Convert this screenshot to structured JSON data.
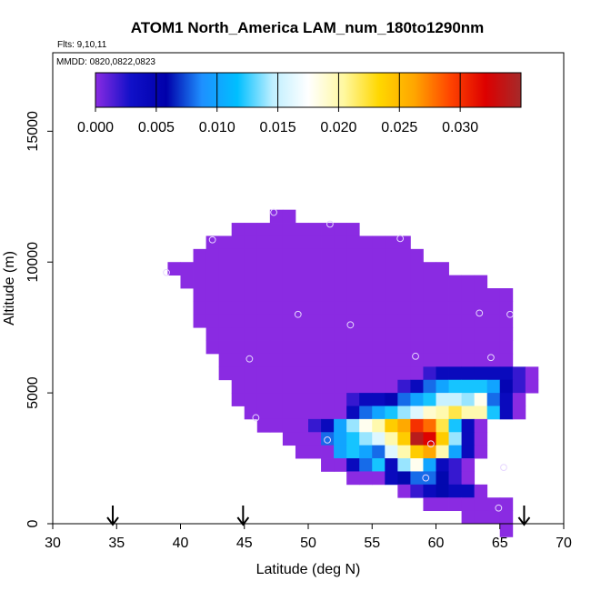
{
  "chart_data": {
    "type": "heatmap",
    "title": "ATOM1 North_America LAM_num_180to1290nm",
    "flights_label": "Flts: 9,10,11",
    "dates_label": "MMDD: 0820,0822,0823",
    "xlabel": "Latitude (deg N)",
    "ylabel": "Altitude (m)",
    "xlim": [
      30,
      70
    ],
    "ylim": [
      0,
      18000
    ],
    "x_ticks": [
      30,
      35,
      40,
      45,
      50,
      55,
      60,
      65,
      70
    ],
    "x_tick_labels": [
      "30",
      "35",
      "40",
      "45",
      "50",
      "55",
      "60",
      "65",
      "70"
    ],
    "y_ticks": [
      0,
      5000,
      10000,
      15000
    ],
    "y_tick_labels": [
      "0",
      "5000",
      "10000",
      "15000"
    ],
    "colorbar": {
      "range": [
        0,
        0.035
      ],
      "ticks": [
        0.0,
        0.005,
        0.01,
        0.015,
        0.02,
        0.025,
        0.03
      ],
      "tick_labels": [
        "0.000",
        "0.005",
        "0.010",
        "0.015",
        "0.020",
        "0.025",
        "0.030"
      ],
      "colors": [
        "#8a2be2",
        "#1010c8",
        "#0000aa",
        "#1e90ff",
        "#00bfff",
        "#bfefff",
        "#ffffff",
        "#fff8a0",
        "#ffd700",
        "#ffa500",
        "#ff4500",
        "#dd0000",
        "#a52a2a"
      ]
    },
    "grid": {
      "lat_start": 39,
      "lat_step": 1,
      "alt_top": 12000,
      "alt_step": 500,
      "rows": [
        {
          "start": 47,
          "values": [
            0,
            0
          ]
        },
        {
          "start": 44,
          "values": [
            0,
            0,
            0,
            0,
            0,
            0,
            0,
            0,
            0,
            0
          ]
        },
        {
          "start": 42,
          "values": [
            0,
            0,
            0,
            0,
            0,
            0,
            0,
            0,
            0,
            0,
            0,
            0,
            0,
            0,
            0,
            0
          ]
        },
        {
          "start": 41,
          "values": [
            0,
            0,
            0,
            0,
            0,
            0,
            0,
            0,
            0,
            0,
            0,
            0,
            0,
            0,
            0,
            0,
            0,
            0
          ]
        },
        {
          "start": 39,
          "values": [
            0,
            0,
            0,
            0,
            0,
            0,
            0,
            0,
            0,
            0,
            0,
            0,
            0,
            0,
            0,
            0,
            0,
            0,
            0,
            0,
            0,
            0
          ]
        },
        {
          "start": 40,
          "values": [
            0,
            0,
            0,
            0,
            0,
            0,
            0,
            0,
            0,
            0,
            0,
            0,
            0,
            0,
            0,
            0,
            0,
            0,
            0,
            0,
            0,
            0,
            0,
            0
          ]
        },
        {
          "start": 41,
          "values": [
            0,
            0,
            0,
            0,
            0,
            0,
            0,
            0,
            0,
            0,
            0,
            0,
            0,
            0,
            0,
            0,
            0,
            0,
            0,
            0,
            0,
            0,
            0,
            0,
            0
          ]
        },
        {
          "start": 41,
          "values": [
            0,
            0,
            0,
            0,
            0,
            0,
            0,
            0,
            0,
            0,
            0,
            0,
            0,
            0,
            0,
            0,
            0,
            0,
            0,
            0,
            0,
            0,
            0,
            0,
            0
          ]
        },
        {
          "start": 41,
          "values": [
            0,
            0,
            0,
            0,
            0,
            0,
            0,
            0,
            0,
            0,
            0,
            0,
            0,
            0,
            0,
            0,
            0,
            0,
            0,
            0,
            0,
            0,
            0,
            0,
            0
          ]
        },
        {
          "start": 42,
          "values": [
            0,
            0,
            0,
            0,
            0,
            0,
            0,
            0,
            0,
            0,
            0,
            0,
            0,
            0,
            0,
            0,
            0,
            0,
            0,
            0,
            0,
            0,
            0,
            0
          ]
        },
        {
          "start": 42,
          "values": [
            0,
            0,
            0,
            0,
            0,
            0,
            0,
            0,
            0,
            0,
            0,
            0,
            0,
            0,
            0,
            0,
            0,
            0,
            0,
            0,
            0,
            0,
            0,
            0
          ]
        },
        {
          "start": 43,
          "values": [
            0,
            0,
            0,
            0,
            0,
            0,
            0,
            0,
            0,
            0,
            0,
            0,
            0,
            0,
            0,
            0,
            0,
            0,
            0,
            0,
            0,
            0,
            0
          ]
        },
        {
          "start": 43,
          "values": [
            0,
            0,
            0,
            0,
            0,
            0,
            0,
            0,
            0,
            0,
            0,
            0,
            0,
            0,
            0,
            0,
            0.002,
            0.004,
            0.004,
            0.004,
            0.004,
            0.004,
            0.004,
            0.002,
            0
          ]
        },
        {
          "start": 44,
          "values": [
            0,
            0,
            0,
            0,
            0,
            0,
            0,
            0,
            0,
            0,
            0,
            0,
            0,
            0.002,
            0.004,
            0.008,
            0.01,
            0.012,
            0.012,
            0.012,
            0.01,
            0.005,
            0.002,
            0
          ]
        },
        {
          "start": 44,
          "values": [
            0,
            0,
            0,
            0,
            0,
            0,
            0,
            0,
            0,
            0.002,
            0.004,
            0.004,
            0.005,
            0.008,
            0.01,
            0.012,
            0.015,
            0.015,
            0.014,
            0.018,
            0.008,
            0.004,
            0
          ]
        },
        {
          "start": 45,
          "values": [
            0,
            0,
            0,
            0,
            0,
            0,
            0,
            0,
            0.004,
            0.008,
            0.01,
            0.012,
            0.014,
            0.016,
            0.019,
            0.02,
            0.022,
            0.02,
            0.02,
            0.012,
            0.004,
            0
          ]
        },
        {
          "start": 46,
          "values": [
            0,
            0,
            0,
            0,
            0.002,
            0.004,
            0.01,
            0.014,
            0.018,
            0.02,
            0.024,
            0.026,
            0.03,
            0.028,
            0.022,
            0.012,
            0.004,
            0
          ]
        },
        {
          "start": 48,
          "values": [
            0,
            0,
            0,
            0.008,
            0.01,
            0.012,
            0.014,
            0.016,
            0.02,
            0.024,
            0.034,
            0.032,
            0.024,
            0.014,
            0.004,
            0
          ]
        },
        {
          "start": 49,
          "values": [
            0,
            0,
            0,
            0.01,
            0.012,
            0.01,
            0.008,
            0.016,
            0.02,
            0.024,
            0.026,
            0.02,
            0.01,
            0.004,
            0
          ]
        },
        {
          "start": 51,
          "values": [
            0,
            0,
            0.004,
            0.008,
            0.012,
            0.004,
            0.014,
            0.018,
            0.01,
            0.004,
            0.002,
            0
          ]
        },
        {
          "start": 53,
          "values": [
            0,
            0,
            0,
            0.004,
            0.006,
            0.008,
            0.008,
            0.006,
            0.002,
            0
          ]
        },
        {
          "start": 57,
          "values": [
            0,
            0.002,
            0.004,
            0.006,
            0.004,
            0.004,
            0
          ]
        },
        {
          "start": 59,
          "values": [
            0,
            0,
            0,
            0,
            0,
            0,
            0
          ]
        },
        {
          "start": 62,
          "values": [
            0,
            0,
            0,
            0
          ]
        },
        {
          "start": 65,
          "values": [
            0
          ]
        }
      ]
    },
    "sample_points": [
      [
        47.3,
        11900
      ],
      [
        51.7,
        11450
      ],
      [
        42.5,
        10850
      ],
      [
        57.2,
        10900
      ],
      [
        38.9,
        9600
      ],
      [
        49.2,
        8000
      ],
      [
        53.3,
        7600
      ],
      [
        63.4,
        8050
      ],
      [
        65.8,
        8000
      ],
      [
        45.4,
        6300
      ],
      [
        58.4,
        6400
      ],
      [
        64.3,
        6350
      ],
      [
        45.9,
        4050
      ],
      [
        51.5,
        3200
      ],
      [
        59.6,
        3050
      ],
      [
        65.3,
        2150
      ],
      [
        59.2,
        1750
      ],
      [
        64.9,
        600
      ]
    ],
    "flight_arrows": [
      34.7,
      44.9,
      66.9
    ]
  }
}
